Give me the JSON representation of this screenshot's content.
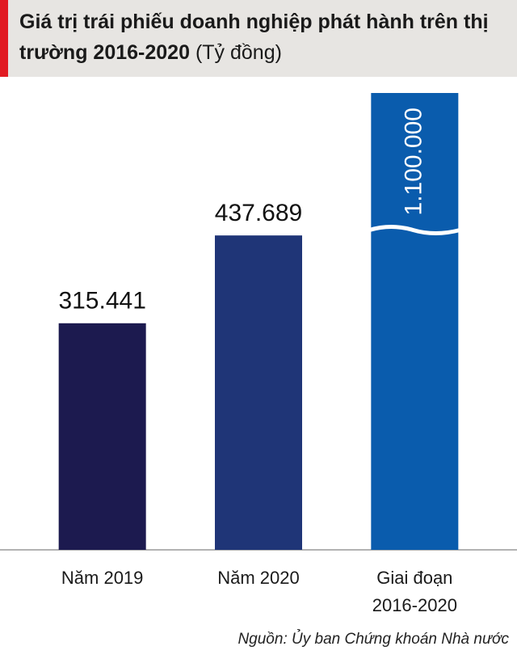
{
  "chart_data": {
    "type": "bar",
    "title": "Giá trị trái phiếu doanh nghiệp phát hành trên thị trường 2016-2020",
    "unit": "(Tỷ đồng)",
    "categories": [
      "Năm 2019",
      "Năm 2020",
      "Giai đoạn 2016-2020"
    ],
    "values": [
      315441,
      437689,
      1100000
    ],
    "value_labels": [
      "315.441",
      "437.689",
      "1.100.000"
    ],
    "colors": [
      "#1c1a4f",
      "#1f3577",
      "#0a5cad"
    ],
    "ylim": [
      0,
      636000
    ],
    "axis_break": true,
    "source": "Nguồn: Ủy ban Chứng khoán Nhà nước"
  }
}
